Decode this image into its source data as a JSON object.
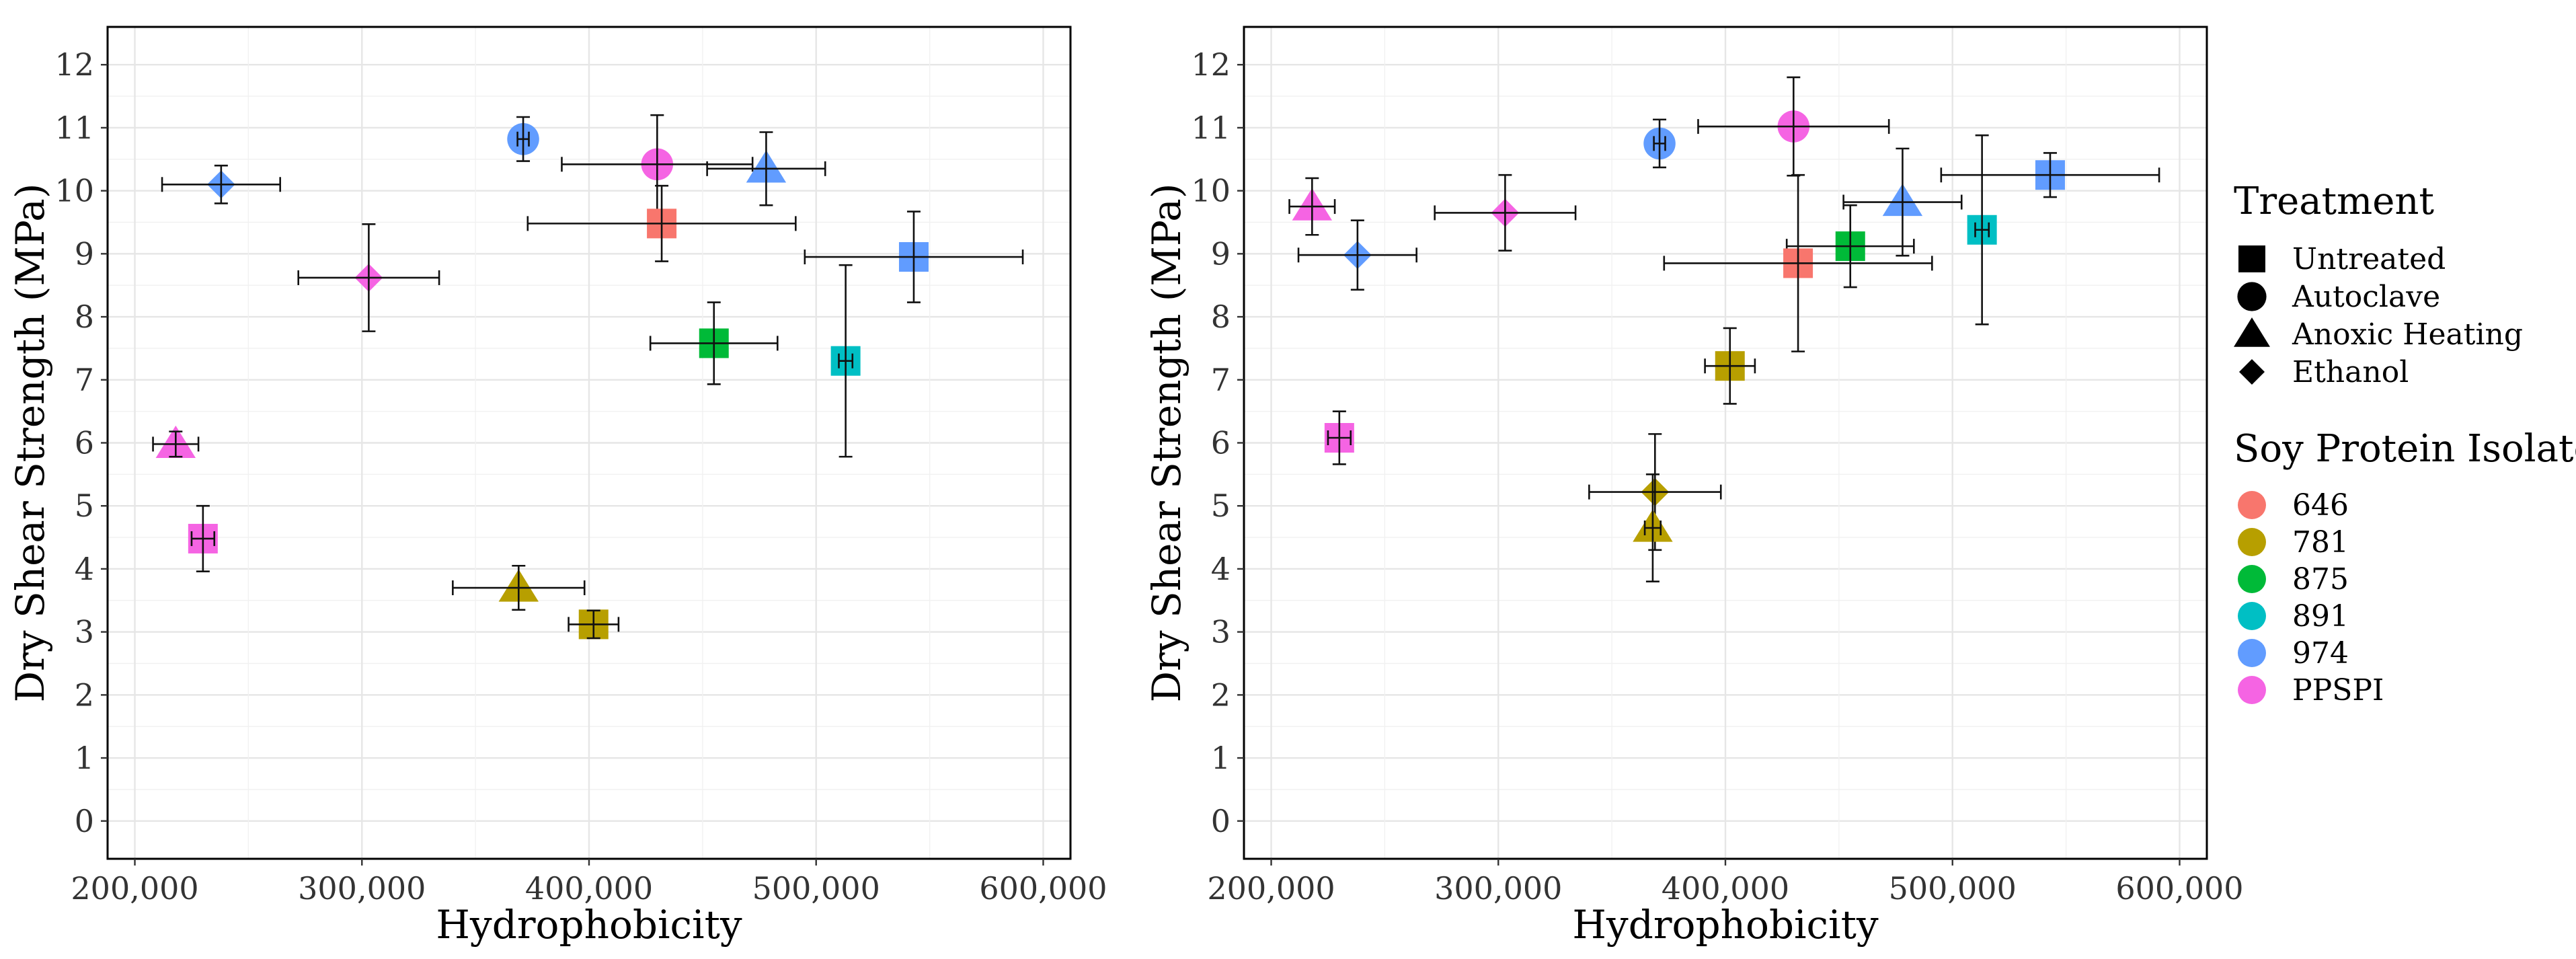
{
  "legend": {
    "treatment": {
      "title": "Treatment",
      "items": [
        {
          "label": "Untreated",
          "shape": "square"
        },
        {
          "label": "Autoclave",
          "shape": "circle"
        },
        {
          "label": "Anoxic Heating",
          "shape": "triangle"
        },
        {
          "label": "Ethanol",
          "shape": "diamond"
        }
      ]
    },
    "isolate": {
      "title": "Soy Protein Isolate",
      "items": [
        {
          "label": "646",
          "color": "#F8766D"
        },
        {
          "label": "781",
          "color": "#B79F00"
        },
        {
          "label": "875",
          "color": "#00BA38"
        },
        {
          "label": "891",
          "color": "#00BFC4"
        },
        {
          "label": "974",
          "color": "#619CFF"
        },
        {
          "label": "PPSPI",
          "color": "#F564E3"
        }
      ]
    }
  },
  "chart_data": [
    {
      "type": "scatter",
      "xlabel": "Hydrophobicity",
      "ylabel": "Dry Shear Strength (MPa)",
      "xlim": [
        188000,
        612000
      ],
      "ylim": [
        -0.6,
        12.6
      ],
      "xticks": [
        200000,
        300000,
        400000,
        500000,
        600000
      ],
      "xtick_labels": [
        "200,000",
        "300,000",
        "400,000",
        "500,000",
        "600,000"
      ],
      "yticks": [
        0,
        1,
        2,
        3,
        4,
        5,
        6,
        7,
        8,
        9,
        10,
        11,
        12
      ],
      "ytick_labels": [
        "0",
        "1",
        "2",
        "3",
        "4",
        "5",
        "6",
        "7",
        "8",
        "9",
        "10",
        "11",
        "12"
      ],
      "grid": true,
      "points": [
        {
          "isolate": "974",
          "treatment": "Ethanol",
          "x": 238000,
          "y": 10.1,
          "xerr": 26000,
          "yerr": 0.3
        },
        {
          "isolate": "974",
          "treatment": "Autoclave",
          "x": 371000,
          "y": 10.82,
          "xerr": 2500,
          "yerr": 0.35
        },
        {
          "isolate": "PPSPI",
          "treatment": "Autoclave",
          "x": 430000,
          "y": 10.42,
          "xerr": 42000,
          "yerr": 0.78
        },
        {
          "isolate": "974",
          "treatment": "Anoxic Heating",
          "x": 478000,
          "y": 10.35,
          "xerr": 26000,
          "yerr": 0.58
        },
        {
          "isolate": "646",
          "treatment": "Untreated",
          "x": 432000,
          "y": 9.48,
          "xerr": 59000,
          "yerr": 0.6
        },
        {
          "isolate": "974",
          "treatment": "Untreated",
          "x": 543000,
          "y": 8.95,
          "xerr": 48000,
          "yerr": 0.72
        },
        {
          "isolate": "PPSPI",
          "treatment": "Ethanol",
          "x": 303000,
          "y": 8.62,
          "xerr": 31000,
          "yerr": 0.85
        },
        {
          "isolate": "875",
          "treatment": "Untreated",
          "x": 455000,
          "y": 7.58,
          "xerr": 28000,
          "yerr": 0.65
        },
        {
          "isolate": "891",
          "treatment": "Untreated",
          "x": 513000,
          "y": 7.3,
          "xerr": 3000,
          "yerr": 1.52
        },
        {
          "isolate": "PPSPI",
          "treatment": "Anoxic Heating",
          "x": 218000,
          "y": 5.98,
          "xerr": 10000,
          "yerr": 0.2
        },
        {
          "isolate": "PPSPI",
          "treatment": "Untreated",
          "x": 230000,
          "y": 4.48,
          "xerr": 5000,
          "yerr": 0.52
        },
        {
          "isolate": "781",
          "treatment": "Anoxic Heating",
          "x": 369000,
          "y": 3.7,
          "xerr": 29000,
          "yerr": 0.35
        },
        {
          "isolate": "781",
          "treatment": "Untreated",
          "x": 402000,
          "y": 3.12,
          "xerr": 11000,
          "yerr": 0.22
        }
      ]
    },
    {
      "type": "scatter",
      "xlabel": "Hydrophobicity",
      "ylabel": "Dry Shear Strength (MPa)",
      "xlim": [
        188000,
        612000
      ],
      "ylim": [
        -0.6,
        12.6
      ],
      "xticks": [
        200000,
        300000,
        400000,
        500000,
        600000
      ],
      "xtick_labels": [
        "200,000",
        "300,000",
        "400,000",
        "500,000",
        "600,000"
      ],
      "yticks": [
        0,
        1,
        2,
        3,
        4,
        5,
        6,
        7,
        8,
        9,
        10,
        11,
        12
      ],
      "ytick_labels": [
        "0",
        "1",
        "2",
        "3",
        "4",
        "5",
        "6",
        "7",
        "8",
        "9",
        "10",
        "11",
        "12"
      ],
      "grid": true,
      "points": [
        {
          "isolate": "PPSPI",
          "treatment": "Autoclave",
          "x": 430000,
          "y": 11.02,
          "xerr": 42000,
          "yerr": 0.78
        },
        {
          "isolate": "974",
          "treatment": "Autoclave",
          "x": 371000,
          "y": 10.75,
          "xerr": 2500,
          "yerr": 0.38
        },
        {
          "isolate": "974",
          "treatment": "Untreated",
          "x": 543000,
          "y": 10.25,
          "xerr": 48000,
          "yerr": 0.35
        },
        {
          "isolate": "974",
          "treatment": "Anoxic Heating",
          "x": 478000,
          "y": 9.82,
          "xerr": 26000,
          "yerr": 0.85
        },
        {
          "isolate": "PPSPI",
          "treatment": "Anoxic Heating",
          "x": 218000,
          "y": 9.75,
          "xerr": 10000,
          "yerr": 0.45
        },
        {
          "isolate": "PPSPI",
          "treatment": "Ethanol",
          "x": 303000,
          "y": 9.65,
          "xerr": 31000,
          "yerr": 0.6
        },
        {
          "isolate": "891",
          "treatment": "Untreated",
          "x": 513000,
          "y": 9.38,
          "xerr": 3000,
          "yerr": 1.5
        },
        {
          "isolate": "875",
          "treatment": "Untreated",
          "x": 455000,
          "y": 9.12,
          "xerr": 28000,
          "yerr": 0.65
        },
        {
          "isolate": "974",
          "treatment": "Ethanol",
          "x": 238000,
          "y": 8.98,
          "xerr": 26000,
          "yerr": 0.55
        },
        {
          "isolate": "646",
          "treatment": "Untreated",
          "x": 432000,
          "y": 8.85,
          "xerr": 59000,
          "yerr": 1.4
        },
        {
          "isolate": "781",
          "treatment": "Untreated",
          "x": 402000,
          "y": 7.22,
          "xerr": 11000,
          "yerr": 0.6
        },
        {
          "isolate": "PPSPI",
          "treatment": "Untreated",
          "x": 230000,
          "y": 6.08,
          "xerr": 5000,
          "yerr": 0.42
        },
        {
          "isolate": "781",
          "treatment": "Ethanol",
          "x": 369000,
          "y": 5.22,
          "xerr": 29000,
          "yerr": 0.92
        },
        {
          "isolate": "781",
          "treatment": "Anoxic Heating",
          "x": 368000,
          "y": 4.65,
          "xerr": 3500,
          "yerr": 0.85
        }
      ]
    }
  ]
}
